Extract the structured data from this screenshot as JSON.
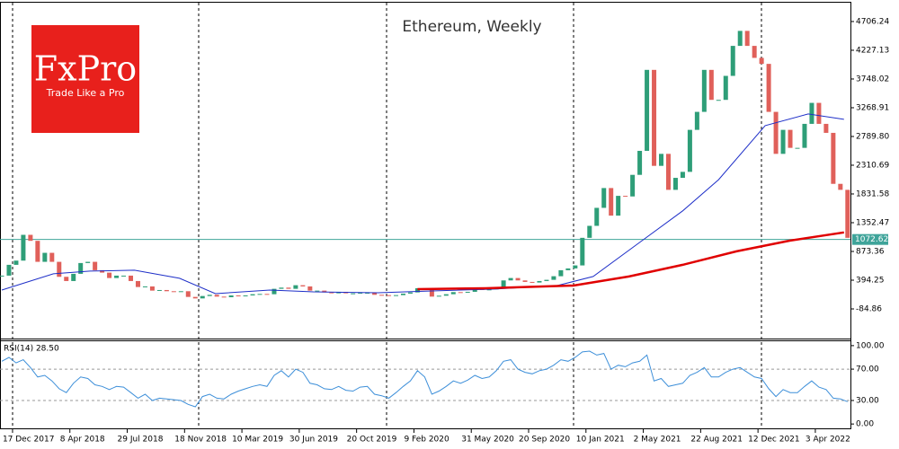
{
  "chart_data": [
    {
      "type": "candlestick",
      "title": "Ethereum, Weekly",
      "xlim": [
        -0.25,
        118.4
      ],
      "ylim": [
        -564,
        5020
      ],
      "yticks": [
        4706.24,
        4227.13,
        3748.02,
        3268.91,
        {
          "value": 2789.8,
          "label": "2789.80"
        },
        2310.69,
        1831.58,
        1352.47,
        873.36,
        394.25,
        -84.86
      ],
      "up_color": "#2e9e78",
      "down_color": "#e0605a",
      "close": [
        470,
        650,
        720,
        1150,
        1050,
        700,
        850,
        700,
        450,
        380,
        500,
        680,
        700,
        560,
        520,
        430,
        470,
        470,
        380,
        280,
        290,
        220,
        230,
        210,
        200,
        210,
        115,
        90,
        130,
        150,
        120,
        110,
        140,
        135,
        140,
        160,
        165,
        160,
        250,
        270,
        250,
        310,
        290,
        220,
        220,
        190,
        175,
        200,
        175,
        175,
        185,
        185,
        150,
        145,
        130,
        145,
        170,
        190,
        260,
        230,
        120,
        135,
        160,
        195,
        190,
        200,
        245,
        230,
        240,
        280,
        390,
        430,
        390,
        365,
        355,
        380,
        400,
        460,
        560,
        590,
        640,
        1100,
        1300,
        1600,
        1930,
        1470,
        1800,
        1790,
        2150,
        2550,
        3900,
        2300,
        2500,
        1900,
        2100,
        2200,
        2900,
        3200,
        3900,
        3400,
        3400,
        3800,
        4300,
        4550,
        4300,
        4100,
        4000,
        3200,
        2500,
        2900,
        2600,
        2600,
        3000,
        3350,
        3000,
        2850,
        2000,
        1900,
        1100
      ],
      "lines": [
        {
          "color": "#1e2fc8",
          "width": 1,
          "x": [
            0,
            7.2,
            12.3,
            18.5,
            24.8,
            29.8,
            37.4,
            43.5,
            52.5,
            60,
            68.5,
            77.5,
            82.5,
            89,
            95,
            100,
            106.5,
            112.5,
            117.5
          ],
          "values": [
            230,
            500,
            545,
            560,
            425,
            170,
            230,
            200,
            185,
            215,
            245,
            305,
            455,
            1025,
            1550,
            2070,
            2970,
            3165,
            3075
          ]
        },
        {
          "color": "#e00000",
          "width": 2.5,
          "x": [
            58,
            67.5,
            79.75,
            87.5,
            95,
            102.5,
            110,
            117.5
          ],
          "values": [
            245,
            260,
            305,
            455,
            650,
            875,
            1055,
            1190
          ]
        }
      ],
      "last_price": 1072.62,
      "last_price_color": "#3fa49a"
    },
    {
      "type": "line",
      "label": "RSI(14) 28.50",
      "color": "#3d8fd9",
      "xlim": [
        -0.25,
        118.4
      ],
      "ylim": [
        -6.7,
        105.6
      ],
      "yticks": [
        {
          "value": 100,
          "label": "100.00"
        },
        {
          "value": 70,
          "label": "70.00"
        },
        {
          "value": 30,
          "label": "30.00"
        },
        {
          "value": 0,
          "label": "0.00"
        }
      ],
      "levels": [
        70,
        30
      ],
      "xticks": [
        {
          "value": 1.5,
          "label": "17 Dec 2017"
        },
        {
          "value": 9.5,
          "label": "8 Apr 2018"
        },
        {
          "value": 17.5,
          "label": "29 Jul 2018"
        },
        {
          "value": 25.5,
          "label": "18 Nov 2018"
        },
        {
          "value": 33.5,
          "label": "10 Mar 2019"
        },
        {
          "value": 41.5,
          "label": "30 Jun 2019"
        },
        {
          "value": 49.5,
          "label": "20 Oct 2019"
        },
        {
          "value": 57.5,
          "label": "9 Feb 2020"
        },
        {
          "value": 65.5,
          "label": "31 May 2020"
        },
        {
          "value": 73.5,
          "label": "20 Sep 2020"
        },
        {
          "value": 81.5,
          "label": "10 Jan 2021"
        },
        {
          "value": 89.5,
          "label": "2 May 2021"
        },
        {
          "value": 97.5,
          "label": "22 Aug 2021"
        },
        {
          "value": 105.5,
          "label": "12 Dec 2021"
        },
        {
          "value": 113.5,
          "label": "3 Apr 2022"
        }
      ],
      "values": [
        80,
        85,
        78,
        82,
        72,
        60,
        62,
        55,
        45,
        40,
        52,
        60,
        58,
        50,
        48,
        44,
        48,
        47,
        40,
        33,
        38,
        30,
        33,
        32,
        31,
        30,
        25,
        22,
        35,
        38,
        33,
        32,
        38,
        42,
        45,
        48,
        50,
        48,
        62,
        68,
        60,
        70,
        66,
        52,
        50,
        45,
        44,
        48,
        43,
        42,
        47,
        48,
        38,
        36,
        33,
        40,
        48,
        55,
        68,
        60,
        38,
        42,
        48,
        55,
        52,
        56,
        62,
        58,
        60,
        68,
        80,
        82,
        70,
        66,
        64,
        68,
        70,
        75,
        82,
        80,
        85,
        92,
        93,
        88,
        90,
        70,
        75,
        73,
        78,
        80,
        88,
        55,
        58,
        48,
        50,
        52,
        62,
        66,
        72,
        60,
        60,
        66,
        70,
        72,
        66,
        60,
        58,
        45,
        35,
        44,
        40,
        40,
        48,
        55,
        47,
        44,
        33,
        32,
        28.5
      ]
    }
  ]
}
